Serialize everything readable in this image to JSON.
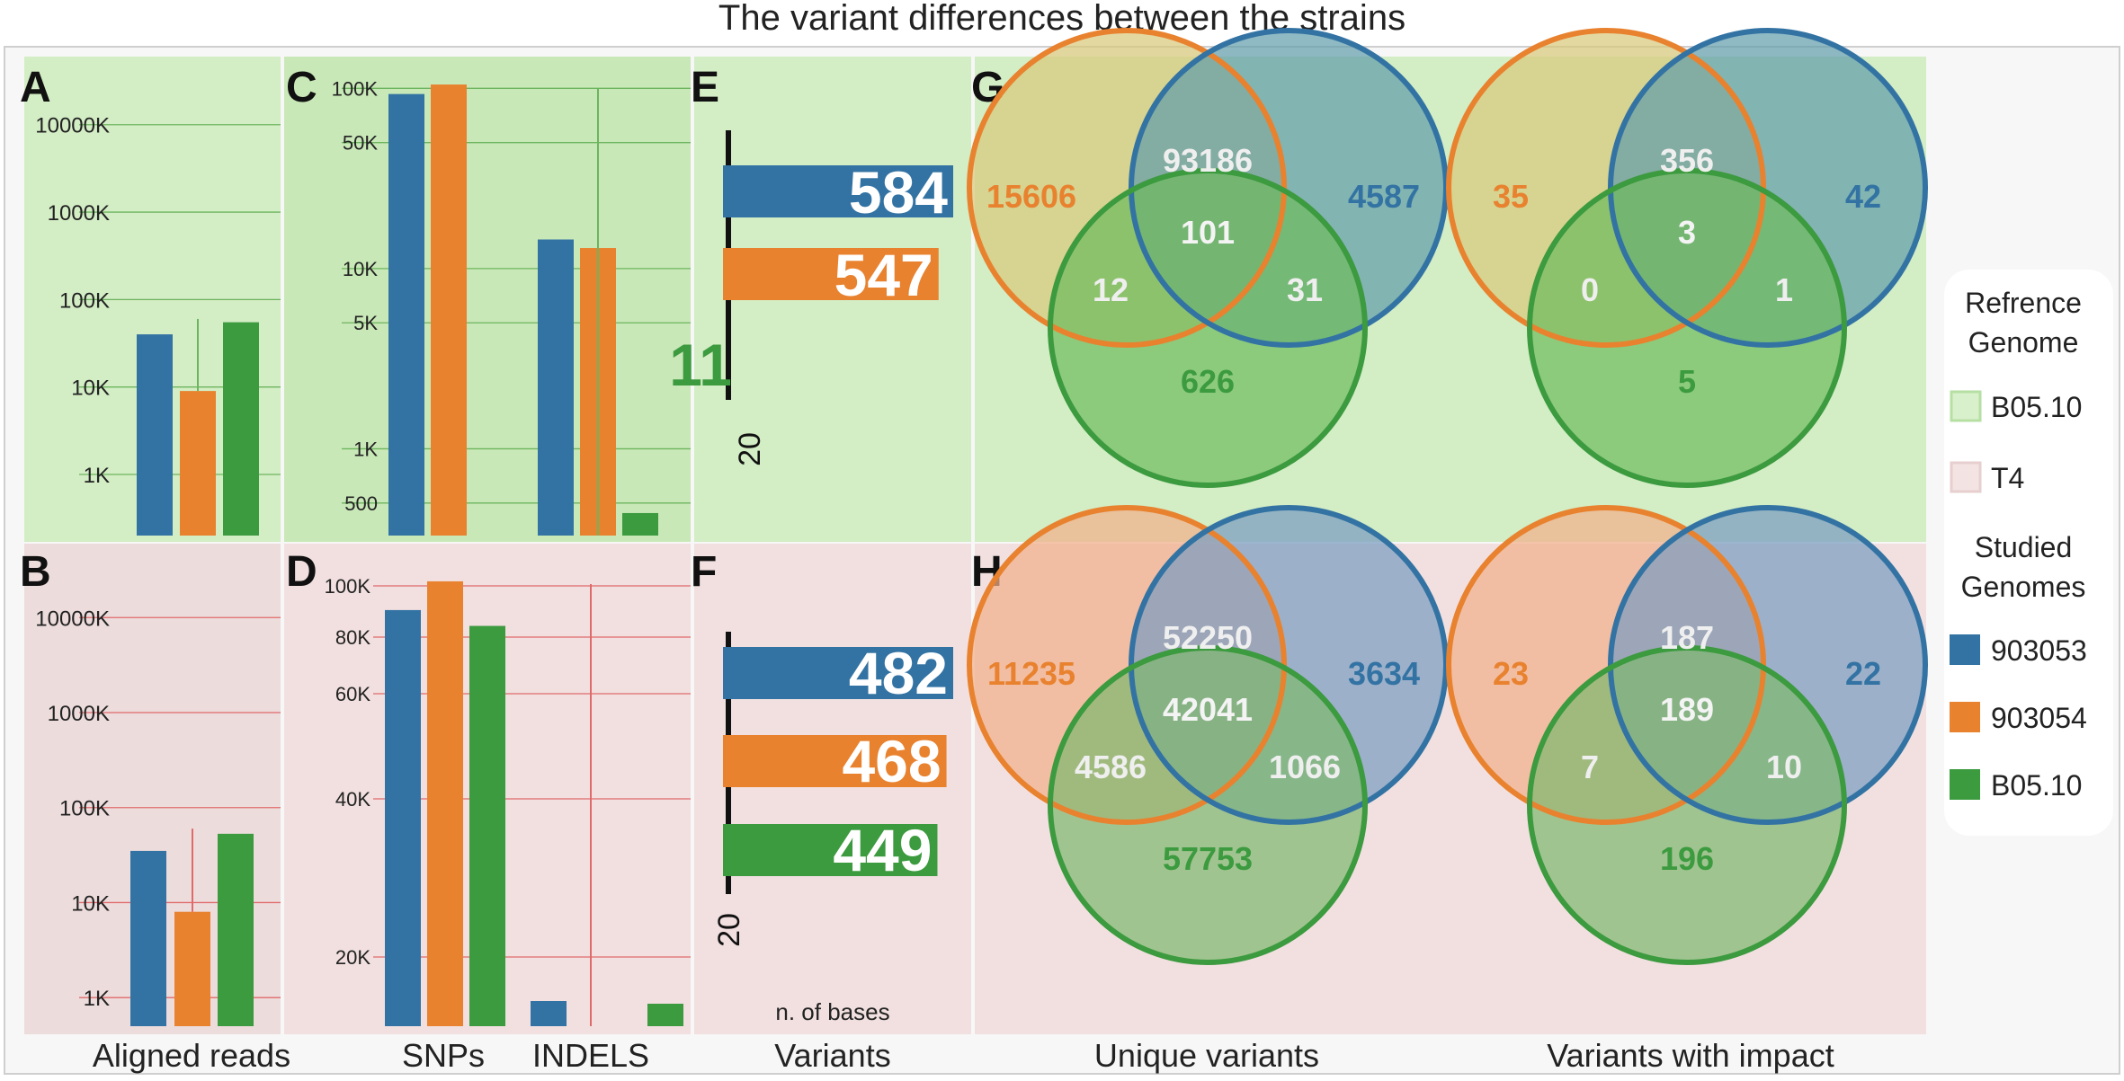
{
  "title": "The variant differences between the strains",
  "colors": {
    "blue": "#3373A3",
    "orange": "#E8822F",
    "green": "#3C9A3F",
    "ref_b0510_bg": "#D3EDC5",
    "ref_t4_bg": "#F2E0E0",
    "b0510_grid": "#6DB55E",
    "t4_grid": "#E06A6A"
  },
  "bottom_labels": {
    "aligned": "Aligned reads",
    "snps": "SNPs",
    "indels": "INDELS",
    "variants": "Variants",
    "unique": "Unique variants",
    "impact": "Variants with impact"
  },
  "legend": {
    "ref_heading_line1": "Refrence",
    "ref_heading_line2": "Genome",
    "ref_items": [
      "B05.10",
      "T4"
    ],
    "studied_heading_line1": "Studied",
    "studied_heading_line2": "Genomes",
    "studied_items": [
      "903053",
      "903054",
      "B05.10"
    ]
  },
  "chart_data": [
    {
      "panel": "A",
      "type": "bar",
      "scale": "log",
      "reference": "B05.10",
      "categories": [
        "903053",
        "903054",
        "B05.10"
      ],
      "values": [
        40000000,
        9000000,
        55000000
      ],
      "errorbar": {
        "category": "903054",
        "low": 9000000,
        "high": 60000000
      },
      "yticks": [
        1000000,
        10000000,
        100000000,
        1000000000,
        10000000000
      ],
      "yticklabels": [
        "1K",
        "10K",
        "100K",
        "1000K",
        "10000K"
      ],
      "ylim": [
        200000,
        60000000000
      ]
    },
    {
      "panel": "B",
      "type": "bar",
      "scale": "log",
      "reference": "T4",
      "categories": [
        "903053",
        "903054",
        "B05.10"
      ],
      "values": [
        35000000,
        8000000,
        53000000
      ],
      "errorbar": {
        "category": "903054",
        "low": 8000000,
        "high": 60000000
      },
      "yticks": [
        1000000,
        10000000,
        100000000,
        1000000000,
        10000000000
      ],
      "yticklabels": [
        "1K",
        "10K",
        "100K",
        "1000K",
        "10000K"
      ],
      "ylim": [
        500000,
        60000000000
      ]
    },
    {
      "panel": "C",
      "type": "bar",
      "scale": "log",
      "reference": "B05.10",
      "groups": [
        "SNPs",
        "INDELS"
      ],
      "series": [
        {
          "name": "903053",
          "values": [
            93000,
            14500
          ]
        },
        {
          "name": "903054",
          "values": [
            105000,
            13000
          ]
        },
        {
          "name": "B05.10",
          "values": [
            null,
            440
          ]
        }
      ],
      "errorbar": {
        "group": "INDELS",
        "low": 13000,
        "high": 100000
      },
      "yticks": [
        500,
        1000,
        5000,
        10000,
        50000,
        100000
      ],
      "yticklabels": [
        "500",
        "1K",
        "5K",
        "10K",
        "50K",
        "100K"
      ],
      "ylim": [
        330,
        150000
      ]
    },
    {
      "panel": "D",
      "type": "bar",
      "scale": "log",
      "reference": "T4",
      "groups": [
        "SNPs",
        "INDELS"
      ],
      "series": [
        {
          "name": "903053",
          "values": [
            90000,
            10000
          ]
        },
        {
          "name": "903054",
          "values": [
            102000,
            null
          ]
        },
        {
          "name": "B05.10",
          "values": [
            84000,
            9800
          ]
        }
      ],
      "errorbar": {
        "group": "INDELS",
        "low": 9000,
        "high": 100000
      },
      "yticks": [
        20000,
        40000,
        60000,
        80000,
        100000
      ],
      "yticklabels": [
        "20K",
        "40K",
        "60K",
        "80K",
        "100K"
      ],
      "ylim": [
        9000,
        110000
      ]
    },
    {
      "panel": "E",
      "type": "bar",
      "orientation": "horizontal",
      "reference": "B05.10",
      "categories": [
        "903053",
        "903054",
        "B05.10"
      ],
      "values": [
        584,
        547,
        11
      ],
      "tick_label": "20",
      "xlabel": ""
    },
    {
      "panel": "F",
      "type": "bar",
      "orientation": "horizontal",
      "reference": "T4",
      "categories": [
        "903053",
        "903054",
        "B05.10"
      ],
      "values": [
        482,
        468,
        449
      ],
      "tick_label": "20",
      "xlabel": "n. of bases"
    },
    {
      "panel": "G",
      "type": "venn",
      "reference": "B05.10",
      "unique_variants": {
        "orange_only": 15606,
        "blue_only": 4587,
        "green_only": 626,
        "orange_blue": 93186,
        "orange_green": 12,
        "blue_green": 31,
        "all": 101
      },
      "variants_with_impact": {
        "orange_only": 35,
        "blue_only": 42,
        "green_only": 5,
        "orange_blue": 356,
        "orange_green": 0,
        "blue_green": 1,
        "all": 3
      }
    },
    {
      "panel": "H",
      "type": "venn",
      "reference": "T4",
      "unique_variants": {
        "orange_only": 11235,
        "blue_only": 3634,
        "green_only": 57753,
        "orange_blue": 52250,
        "orange_green": 4586,
        "blue_green": 1066,
        "all": 42041
      },
      "variants_with_impact": {
        "orange_only": 23,
        "blue_only": 22,
        "green_only": 196,
        "orange_blue": 187,
        "orange_green": 7,
        "blue_green": 10,
        "all": 189
      }
    }
  ]
}
